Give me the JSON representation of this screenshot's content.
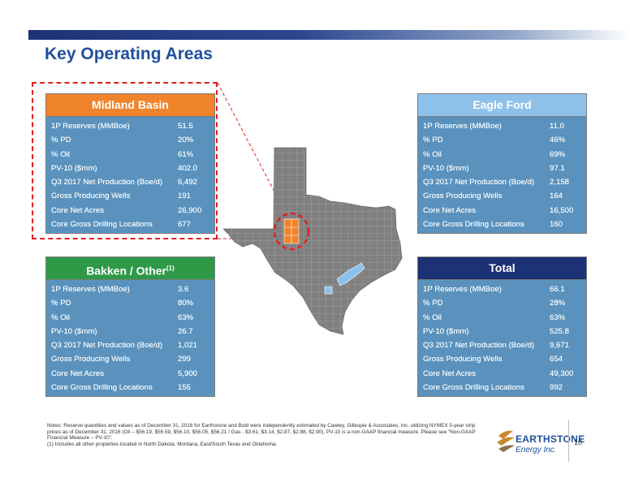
{
  "title": "Key Operating Areas",
  "cards": {
    "midland": {
      "header": "Midland Basin",
      "header_color": "#f0842c",
      "rows": [
        {
          "label": "1P Reserves (MMBoe)",
          "value": "51.5"
        },
        {
          "label": "% PD",
          "value": "20%"
        },
        {
          "label": "% Oil",
          "value": "61%"
        },
        {
          "label": "PV-10 ($mm)",
          "value": "402.0"
        },
        {
          "label": "Q3 2017 Net Production (Boe/d)",
          "value": "6,492"
        },
        {
          "label": "Gross Producing Wells",
          "value": "191"
        },
        {
          "label": "Core Net Acres",
          "value": "26,900"
        },
        {
          "label": "Core Gross Drilling Locations",
          "value": "677"
        }
      ]
    },
    "eagle": {
      "header": "Eagle Ford",
      "header_color": "#8ec1ea",
      "rows": [
        {
          "label": "1P Reserves (MMBoe)",
          "value": "11.0"
        },
        {
          "label": "% PD",
          "value": "46%"
        },
        {
          "label": "% Oil",
          "value": "69%"
        },
        {
          "label": "PV-10 ($mm)",
          "value": "97.1"
        },
        {
          "label": "Q3 2017 Net Production (Boe/d)",
          "value": "2,158"
        },
        {
          "label": "Gross Producing Wells",
          "value": "164"
        },
        {
          "label": "Core Net Acres",
          "value": "16,500"
        },
        {
          "label": "Core Gross Drilling Locations",
          "value": "160"
        }
      ]
    },
    "bakken": {
      "header": "Bakken / Other",
      "header_sup": "(1)",
      "header_color": "#2e9a48",
      "rows": [
        {
          "label": "1P Reserves (MMBoe)",
          "value": "3.6"
        },
        {
          "label": "% PD",
          "value": "80%"
        },
        {
          "label": "% Oil",
          "value": "63%"
        },
        {
          "label": "PV-10 ($mm)",
          "value": "26.7"
        },
        {
          "label": "Q3 2017 Net Production (Boe/d)",
          "value": "1,021"
        },
        {
          "label": "Gross Producing Wells",
          "value": "299"
        },
        {
          "label": "Core Net Acres",
          "value": "5,900"
        },
        {
          "label": "Core Gross Drilling Locations",
          "value": "155"
        }
      ]
    },
    "total": {
      "header": "Total",
      "header_color": "#1d3276",
      "rows": [
        {
          "label": "1P Reserves (MMBoe)",
          "value": "66.1"
        },
        {
          "label": "% PD",
          "value": "28%"
        },
        {
          "label": "% Oil",
          "value": "63%"
        },
        {
          "label": "PV-10 ($mm)",
          "value": "525.8"
        },
        {
          "label": "Q3 2017 Net Production (Boe/d)",
          "value": "9,671"
        },
        {
          "label": "Gross Producing Wells",
          "value": "654"
        },
        {
          "label": "Core Net Acres",
          "value": "49,300"
        },
        {
          "label": "Core Gross Drilling Locations",
          "value": "992"
        }
      ]
    }
  },
  "notes": {
    "line1": "Notes:  Reserve quantities and values as of December 31, 2016 for Earthstone and Bold were independently estimated by Cawley, Gillespie & Associates, Inc. utilizing NYMEX 5-year strip prices as of December 31, 2016 (Oil – $56.19, $56.59, $56.10, $56.05, $56.21 / Gas - $3.61, $3.14, $2.87, $2.88, $2.90). PV-10 is a non-GAAP financial measure. Please see “Non-GAAP Financial Measure – PV-10”.",
    "line2": "(1)    Includes all other properties located in North Dakota, Montana, East/South Texas and Oklahoma."
  },
  "logo": {
    "name": "EARTHSTONE",
    "sub": "Energy Inc."
  },
  "page_number": "10",
  "colors": {
    "body": "#5a92bd",
    "highlight": "#f0842c",
    "eagle_county": "#8ec1ea",
    "map": "#7f7f7f",
    "dash": "#e02020"
  }
}
